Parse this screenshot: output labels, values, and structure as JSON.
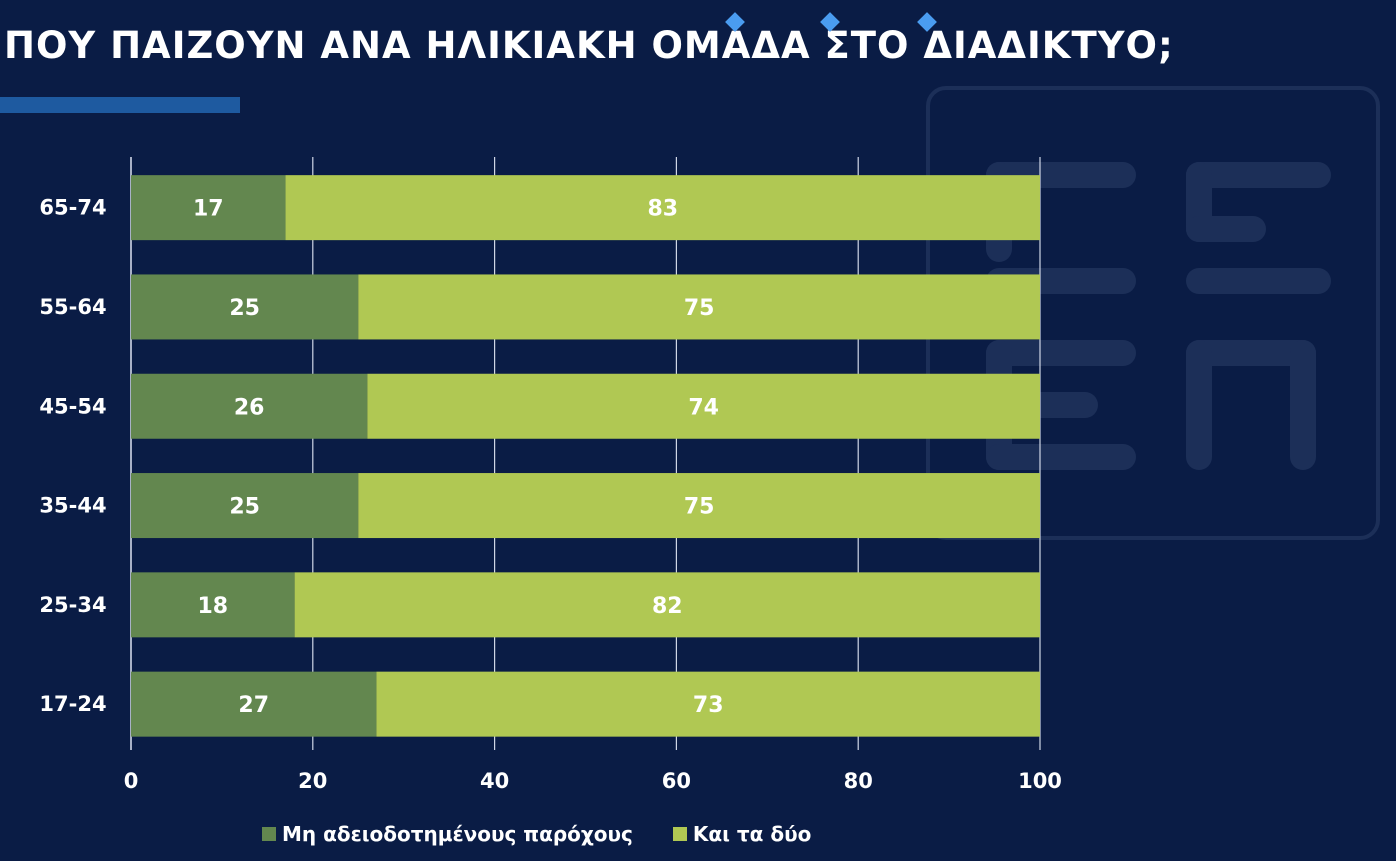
{
  "page": {
    "title": "ΠΟΥ ΠΑΙΖΟΥΝ ΑΝΑ ΗΛΙΚΙΑΚΗ ΟΜΑΔΑ ΣΤΟ ΔΙΑΔΙΚΤΥΟ;",
    "accent_color": "#1e5aa0",
    "diamond_color": "#4a9cf0",
    "background_color": "#0a1c45",
    "watermark": "ΕΣΕΠ logo"
  },
  "chart_data": {
    "type": "bar",
    "orientation": "horizontal",
    "stacked": true,
    "categories": [
      "17-24",
      "25-34",
      "35-44",
      "45-54",
      "55-64",
      "65-74"
    ],
    "series": [
      {
        "name": "Μη αδειοδοτημένους παρόχους",
        "color": "#63874f",
        "values": [
          27,
          18,
          25,
          26,
          25,
          17
        ]
      },
      {
        "name": "Και τα δύο",
        "color": "#b0c853",
        "values": [
          73,
          82,
          75,
          74,
          75,
          83
        ]
      }
    ],
    "xlim": [
      0,
      100
    ],
    "xticks": [
      0,
      20,
      40,
      60,
      80,
      100
    ],
    "grid": true,
    "data_labels": true,
    "legend_position": "bottom"
  }
}
